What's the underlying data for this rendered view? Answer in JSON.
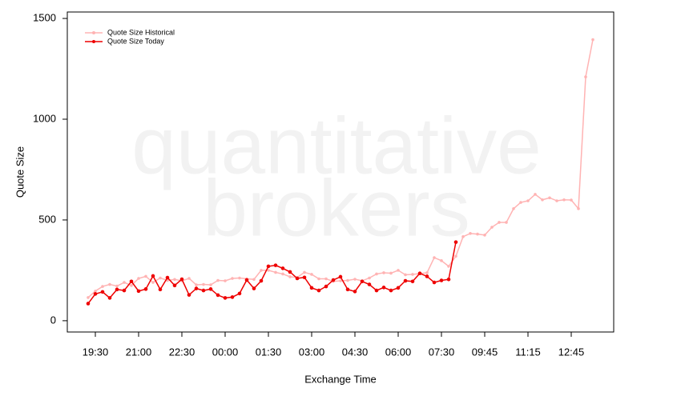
{
  "chart_data": {
    "type": "line",
    "watermark": [
      "quantitative",
      "brokers"
    ],
    "x_label": "Exchange Time",
    "y_label": "Quote Size",
    "categories": [
      null,
      "19:30",
      null,
      null,
      null,
      null,
      null,
      "21:00",
      null,
      null,
      null,
      null,
      null,
      "22:30",
      null,
      null,
      null,
      null,
      null,
      "00:00",
      null,
      null,
      null,
      null,
      null,
      "01:30",
      null,
      null,
      null,
      null,
      null,
      "03:00",
      null,
      null,
      null,
      null,
      null,
      "04:30",
      null,
      null,
      null,
      null,
      null,
      "06:00",
      null,
      null,
      null,
      null,
      null,
      "07:30",
      null,
      null,
      null,
      null,
      null,
      "09:45",
      null,
      null,
      null,
      null,
      null,
      "11:15",
      null,
      null,
      null,
      null,
      null,
      "12:45",
      null,
      null,
      null
    ],
    "series": [
      {
        "name": "Quote Size Historical",
        "color": "#ffb3b3",
        "values": [
          115,
          147,
          170,
          180,
          172,
          190,
          175,
          210,
          220,
          190,
          212,
          200,
          205,
          198,
          210,
          178,
          180,
          178,
          200,
          198,
          210,
          212,
          208,
          205,
          250,
          250,
          240,
          232,
          218,
          215,
          240,
          230,
          208,
          208,
          195,
          198,
          200,
          206,
          198,
          212,
          232,
          238,
          236,
          250,
          228,
          230,
          234,
          238,
          313,
          298,
          270,
          320,
          417,
          433,
          430,
          425,
          464,
          488,
          488,
          556,
          587,
          595,
          627,
          600,
          610,
          595,
          600,
          599,
          556,
          1210,
          1395
        ]
      },
      {
        "name": "Quote Size Today",
        "color": "#ee0000",
        "values": [
          85,
          133,
          143,
          113,
          155,
          150,
          195,
          147,
          157,
          222,
          155,
          214,
          175,
          206,
          128,
          160,
          150,
          157,
          127,
          113,
          117,
          135,
          202,
          160,
          198,
          270,
          275,
          260,
          242,
          210,
          215,
          163,
          150,
          170,
          202,
          218,
          155,
          145,
          195,
          180,
          150,
          165,
          150,
          163,
          198,
          195,
          235,
          220,
          190,
          200,
          205,
          390,
          null,
          null,
          null,
          null,
          null,
          null,
          null,
          null,
          null,
          null,
          null,
          null,
          null,
          null,
          null,
          null,
          null,
          null,
          null
        ]
      }
    ],
    "ylim": [
      -56,
      1532
    ],
    "yticks": [
      0,
      500,
      1000,
      1500
    ],
    "legend": "upper left"
  }
}
